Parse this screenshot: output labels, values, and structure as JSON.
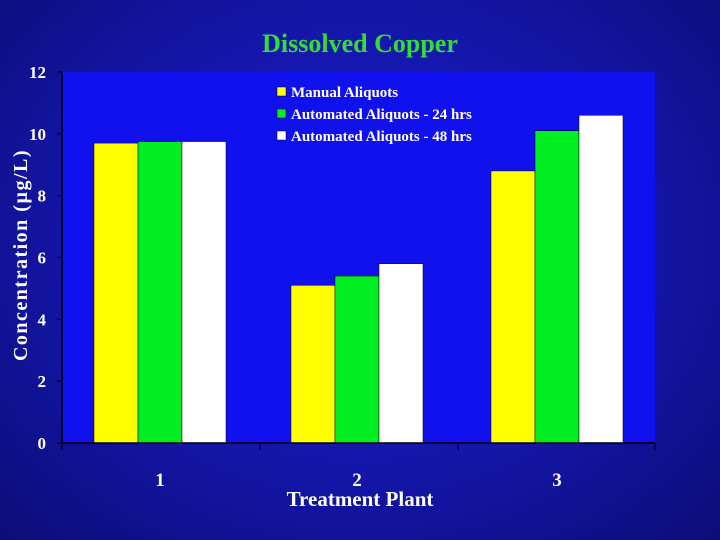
{
  "colors": {
    "plot_background": "#1111ee",
    "title": "#33dd33",
    "text": "#ffffff",
    "series_yellow": "#ffff00",
    "series_green": "#00ee22",
    "series_white": "#ffffff"
  },
  "chart_data": {
    "type": "bar",
    "title": "Dissolved Copper",
    "xlabel": "Treatment Plant",
    "ylabel": "Concentration (µg/L)",
    "categories": [
      "1",
      "2",
      "3"
    ],
    "ylim": [
      0,
      12
    ],
    "yticks": [
      "0",
      "2",
      "4",
      "6",
      "8",
      "10",
      "12"
    ],
    "grid": false,
    "legend_position": "top-center",
    "series": [
      {
        "name": "Manual Aliquots",
        "color": "#ffff00",
        "values": [
          9.7,
          5.1,
          8.8
        ]
      },
      {
        "name": "Automated Aliquots - 24 hrs",
        "color": "#00ee22",
        "values": [
          9.75,
          5.4,
          10.1
        ]
      },
      {
        "name": "Automated Aliquots - 48 hrs",
        "color": "#ffffff",
        "values": [
          9.75,
          5.8,
          10.6
        ]
      }
    ]
  }
}
